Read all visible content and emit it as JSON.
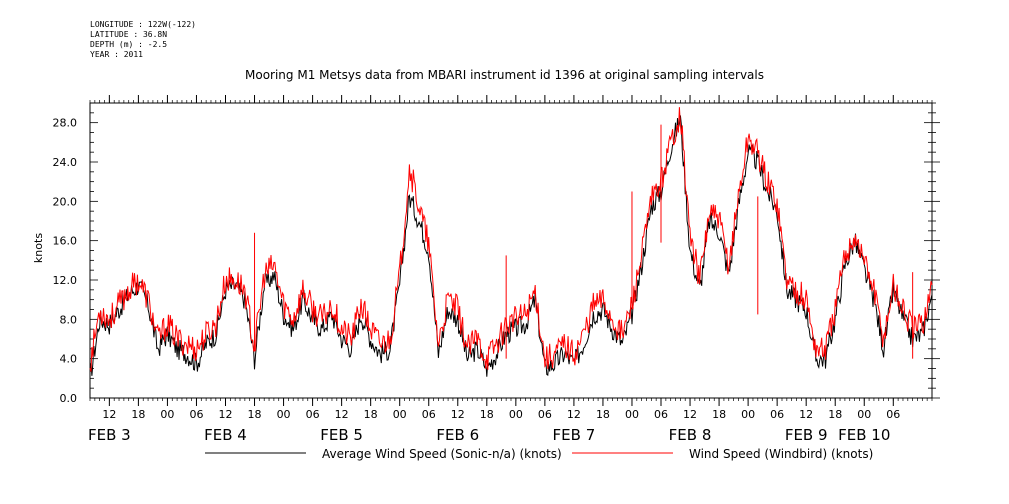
{
  "metadata": {
    "longitude": "LONGITUDE : 122W(-122)",
    "latitude": "LATITUDE : 36.8N",
    "depth": "DEPTH (m) : -2.5",
    "year": "YEAR : 2011"
  },
  "chart_data": {
    "type": "line",
    "title": "Mooring M1 Metsys data from MBARI instrument id 1396 at original sampling intervals",
    "ylabel": "knots",
    "xlabel": "",
    "ylim": [
      0,
      30
    ],
    "yticks": [
      "0.0",
      "4.0",
      "8.0",
      "12.0",
      "16.0",
      "20.0",
      "24.0",
      "28.0"
    ],
    "xlim_hours": [
      8,
      182
    ],
    "hour_ticks": [
      {
        "h": 12,
        "label": "12"
      },
      {
        "h": 18,
        "label": "18"
      },
      {
        "h": 24,
        "label": "00"
      },
      {
        "h": 30,
        "label": "06"
      },
      {
        "h": 36,
        "label": "12"
      },
      {
        "h": 42,
        "label": "18"
      },
      {
        "h": 48,
        "label": "00"
      },
      {
        "h": 54,
        "label": "06"
      },
      {
        "h": 60,
        "label": "12"
      },
      {
        "h": 66,
        "label": "18"
      },
      {
        "h": 72,
        "label": "00"
      },
      {
        "h": 78,
        "label": "06"
      },
      {
        "h": 84,
        "label": "12"
      },
      {
        "h": 90,
        "label": "18"
      },
      {
        "h": 96,
        "label": "00"
      },
      {
        "h": 102,
        "label": "06"
      },
      {
        "h": 108,
        "label": "12"
      },
      {
        "h": 114,
        "label": "18"
      },
      {
        "h": 120,
        "label": "00"
      },
      {
        "h": 126,
        "label": "06"
      },
      {
        "h": 132,
        "label": "12"
      },
      {
        "h": 138,
        "label": "18"
      },
      {
        "h": 144,
        "label": "00"
      },
      {
        "h": 150,
        "label": "06"
      },
      {
        "h": 156,
        "label": "12"
      },
      {
        "h": 162,
        "label": "18"
      },
      {
        "h": 168,
        "label": "00"
      },
      {
        "h": 174,
        "label": "06"
      }
    ],
    "day_labels": [
      {
        "h": 12,
        "label": "FEB  3"
      },
      {
        "h": 36,
        "label": "FEB  4"
      },
      {
        "h": 60,
        "label": "FEB  5"
      },
      {
        "h": 84,
        "label": "FEB  6"
      },
      {
        "h": 108,
        "label": "FEB  7"
      },
      {
        "h": 132,
        "label": "FEB  8"
      },
      {
        "h": 156,
        "label": "FEB  9"
      },
      {
        "h": 168,
        "label": "FEB 10"
      }
    ],
    "x_hours": [
      8,
      10,
      12,
      14,
      16,
      18,
      20,
      22,
      24,
      26,
      28,
      30,
      32,
      34,
      36,
      38,
      40,
      42,
      44,
      46,
      48,
      50,
      52,
      54,
      56,
      58,
      60,
      62,
      64,
      66,
      68,
      70,
      72,
      74,
      76,
      78,
      80,
      82,
      84,
      86,
      88,
      90,
      92,
      94,
      96,
      98,
      100,
      102,
      104,
      106,
      108,
      110,
      112,
      114,
      116,
      118,
      120,
      122,
      124,
      126,
      128,
      130,
      132,
      134,
      136,
      138,
      140,
      142,
      144,
      146,
      148,
      150,
      152,
      154,
      156,
      158,
      160,
      162,
      164,
      166,
      168,
      170,
      172,
      174,
      176,
      178,
      180,
      182
    ],
    "series": [
      {
        "name": "Average Wind Speed (Sonic-n/a) (knots)",
        "color": "#000000",
        "values": [
          2.0,
          8.0,
          7.5,
          9.0,
          10.5,
          11.5,
          9.5,
          5.0,
          6.5,
          5.0,
          4.5,
          3.5,
          5.5,
          6.5,
          11.0,
          11.5,
          10.0,
          4.0,
          11.5,
          12.5,
          8.5,
          7.0,
          10.0,
          8.0,
          7.0,
          8.5,
          6.0,
          5.0,
          8.5,
          6.0,
          4.5,
          5.0,
          11.5,
          20.5,
          18.0,
          15.0,
          4.5,
          9.0,
          8.0,
          4.0,
          5.0,
          3.0,
          4.5,
          6.5,
          7.0,
          7.5,
          10.0,
          3.0,
          3.5,
          4.5,
          3.5,
          5.5,
          8.5,
          9.0,
          7.0,
          5.5,
          8.5,
          13.5,
          19.5,
          21.0,
          25.5,
          28.5,
          15.0,
          11.0,
          18.0,
          17.0,
          12.5,
          19.5,
          25.0,
          24.0,
          21.0,
          19.0,
          11.0,
          10.0,
          9.0,
          4.0,
          4.0,
          8.0,
          13.5,
          16.0,
          13.0,
          10.0,
          5.0,
          11.0,
          8.0,
          6.0,
          6.5,
          10.5
        ]
      },
      {
        "name": "Wind Speed (Windbird) (knots)",
        "color": "#ff0000",
        "values": [
          3.5,
          9.0,
          8.0,
          9.5,
          11.0,
          12.0,
          10.0,
          6.0,
          7.5,
          6.0,
          5.5,
          5.0,
          6.5,
          7.5,
          12.0,
          12.0,
          11.0,
          5.0,
          12.5,
          13.5,
          9.5,
          8.0,
          11.0,
          9.0,
          8.0,
          9.5,
          7.0,
          6.0,
          9.5,
          7.0,
          5.5,
          6.0,
          12.5,
          23.5,
          19.5,
          15.5,
          5.5,
          10.0,
          9.0,
          5.0,
          6.0,
          4.0,
          5.5,
          7.5,
          8.0,
          8.5,
          11.0,
          4.0,
          4.5,
          5.5,
          4.5,
          6.5,
          9.5,
          10.0,
          8.0,
          6.5,
          9.5,
          14.5,
          20.0,
          22.0,
          26.0,
          29.0,
          16.5,
          12.0,
          19.0,
          18.0,
          13.5,
          20.5,
          26.5,
          25.0,
          22.0,
          20.0,
          12.0,
          11.0,
          10.0,
          5.0,
          5.0,
          9.0,
          14.5,
          16.5,
          14.0,
          11.0,
          6.0,
          11.5,
          9.0,
          7.0,
          7.5,
          11.5
        ]
      }
    ],
    "spikes": [
      {
        "h": 42,
        "v": 16.8
      },
      {
        "h": 94,
        "v": 14.5
      },
      {
        "h": 120,
        "v": 21.0
      },
      {
        "h": 126,
        "v": 27.8
      },
      {
        "h": 146,
        "v": 20.5
      },
      {
        "h": 178,
        "v": 12.8
      }
    ],
    "legend_position": "bottom"
  }
}
